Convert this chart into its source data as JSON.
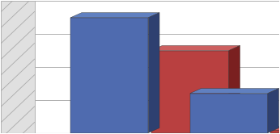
{
  "groups": 2,
  "uomini": [
    3.5,
    1.2
  ],
  "donne": [
    2.5,
    0.08
  ],
  "bar_color_uomini": "#4f6baf",
  "bar_color_uomini_dark": "#2e4070",
  "bar_color_uomini_top": "#6080c0",
  "bar_color_donne": "#b94040",
  "bar_color_donne_dark": "#7a2020",
  "bar_color_donne_top": "#cc6060",
  "background_color": "#ffffff",
  "wall_color": "#d8d8d8",
  "hatch_color": "#b0b0b0",
  "ylim": [
    0,
    4
  ],
  "grid_color": "#b0b0b0",
  "bar_width": 0.28,
  "depth": 0.08,
  "group_positions": [
    0.25,
    0.68
  ]
}
